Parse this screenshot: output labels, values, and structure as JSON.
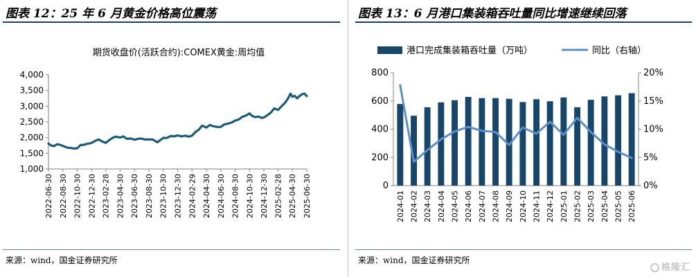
{
  "chart_data": [
    {
      "type": "line",
      "title": "图表 12：25 年 6 月黄金价格高位震荡",
      "subtitle": "期货收盘价(活跃合约):COMEX黄金:周均值",
      "source": "来源：wind，国金证券研究所",
      "x_ticks": [
        "2022-06-30",
        "2022-08-30",
        "2022-10-30",
        "2022-12-30",
        "2023-02-28",
        "2023-04-30",
        "2023-06-30",
        "2023-08-30",
        "2023-10-30",
        "2023-12-30",
        "2024-02-29",
        "2024-04-30",
        "2024-06-30",
        "2024-08-30",
        "2024-10-30",
        "2024-12-30",
        "2025-02-28",
        "2025-04-30",
        "2025-06-30"
      ],
      "y_ticks": [
        "1,000",
        "1,500",
        "2,000",
        "2,500",
        "3,000",
        "3,500",
        "4,000"
      ],
      "ylim": [
        1000,
        4000
      ],
      "grid": false,
      "color": "#1b5a78",
      "series": [
        {
          "points": [
            [
              "2022-06-30",
              1810
            ],
            [
              "2022-07-10",
              1750
            ],
            [
              "2022-07-24",
              1730
            ],
            [
              "2022-08-07",
              1790
            ],
            [
              "2022-08-21",
              1760
            ],
            [
              "2022-09-04",
              1720
            ],
            [
              "2022-09-18",
              1680
            ],
            [
              "2022-10-02",
              1670
            ],
            [
              "2022-10-16",
              1650
            ],
            [
              "2022-10-30",
              1660
            ],
            [
              "2022-11-13",
              1760
            ],
            [
              "2022-11-27",
              1770
            ],
            [
              "2022-12-11",
              1800
            ],
            [
              "2022-12-30",
              1830
            ],
            [
              "2023-01-15",
              1900
            ],
            [
              "2023-01-29",
              1940
            ],
            [
              "2023-02-12",
              1880
            ],
            [
              "2023-02-28",
              1830
            ],
            [
              "2023-03-15",
              1920
            ],
            [
              "2023-03-29",
              1990
            ],
            [
              "2023-04-12",
              2030
            ],
            [
              "2023-04-30",
              2000
            ],
            [
              "2023-05-14",
              2040
            ],
            [
              "2023-05-28",
              1960
            ],
            [
              "2023-06-15",
              1970
            ],
            [
              "2023-06-30",
              1930
            ],
            [
              "2023-07-15",
              1960
            ],
            [
              "2023-07-29",
              1970
            ],
            [
              "2023-08-12",
              1940
            ],
            [
              "2023-08-30",
              1940
            ],
            [
              "2023-09-15",
              1940
            ],
            [
              "2023-10-05",
              1850
            ],
            [
              "2023-10-30",
              1990
            ],
            [
              "2023-11-15",
              1990
            ],
            [
              "2023-12-01",
              2050
            ],
            [
              "2023-12-15",
              2040
            ],
            [
              "2023-12-30",
              2070
            ],
            [
              "2024-01-15",
              2040
            ],
            [
              "2024-02-01",
              2060
            ],
            [
              "2024-02-15",
              2030
            ],
            [
              "2024-02-29",
              2060
            ],
            [
              "2024-03-15",
              2180
            ],
            [
              "2024-03-29",
              2250
            ],
            [
              "2024-04-12",
              2380
            ],
            [
              "2024-04-30",
              2320
            ],
            [
              "2024-05-15",
              2400
            ],
            [
              "2024-05-29",
              2360
            ],
            [
              "2024-06-15",
              2340
            ],
            [
              "2024-06-30",
              2340
            ],
            [
              "2024-07-15",
              2420
            ],
            [
              "2024-07-29",
              2440
            ],
            [
              "2024-08-15",
              2480
            ],
            [
              "2024-08-30",
              2540
            ],
            [
              "2024-09-15",
              2580
            ],
            [
              "2024-09-29",
              2660
            ],
            [
              "2024-10-15",
              2700
            ],
            [
              "2024-10-30",
              2770
            ],
            [
              "2024-11-08",
              2700
            ],
            [
              "2024-11-22",
              2650
            ],
            [
              "2024-12-06",
              2670
            ],
            [
              "2024-12-20",
              2630
            ],
            [
              "2024-12-30",
              2640
            ],
            [
              "2025-01-15",
              2720
            ],
            [
              "2025-01-29",
              2800
            ],
            [
              "2025-02-12",
              2930
            ],
            [
              "2025-02-28",
              2880
            ],
            [
              "2025-03-15",
              3000
            ],
            [
              "2025-03-29",
              3100
            ],
            [
              "2025-04-12",
              3250
            ],
            [
              "2025-04-22",
              3400
            ],
            [
              "2025-04-30",
              3300
            ],
            [
              "2025-05-10",
              3330
            ],
            [
              "2025-05-20",
              3250
            ],
            [
              "2025-05-30",
              3320
            ],
            [
              "2025-06-10",
              3380
            ],
            [
              "2025-06-20",
              3400
            ],
            [
              "2025-06-30",
              3320
            ]
          ]
        }
      ]
    },
    {
      "type": "bar+line",
      "title": "图表 13：6 月港口集装箱吞吐量同比增速继续回落",
      "source": "来源：wind，国金证券研究所",
      "categories": [
        "2024-01",
        "2024-02",
        "2024-03",
        "2024-04",
        "2024-05",
        "2024-06",
        "2024-07",
        "2024-08",
        "2024-09",
        "2024-10",
        "2024-11",
        "2024-12",
        "2025-01",
        "2025-02",
        "2025-03",
        "2025-04",
        "2025-05",
        "2025-06"
      ],
      "y_left_ticks": [
        "0",
        "200",
        "400",
        "600",
        "800"
      ],
      "y_right_ticks": [
        "0%",
        "5%",
        "10%",
        "15%",
        "20%"
      ],
      "ylim_left": [
        0,
        800
      ],
      "ylim_right": [
        0,
        20
      ],
      "legend_position": "top",
      "grid": false,
      "bar_color": "#17466a",
      "line_color": "#5b8fc9",
      "series": [
        {
          "name": "港口完成集装箱吞吐量（万吨）",
          "type": "bar",
          "axis": "left",
          "values": [
            578,
            495,
            555,
            590,
            605,
            628,
            620,
            620,
            615,
            592,
            612,
            598,
            625,
            555,
            608,
            632,
            640,
            655
          ]
        },
        {
          "name": "同比（右轴）",
          "type": "line",
          "axis": "right",
          "values": [
            17.8,
            4.2,
            6.3,
            8.2,
            9.6,
            10.4,
            9.7,
            9.5,
            7.2,
            10.3,
            9.2,
            11.3,
            9.0,
            12.0,
            9.5,
            7.3,
            6.0,
            4.9
          ]
        }
      ]
    }
  ],
  "watermark": "格隆汇"
}
